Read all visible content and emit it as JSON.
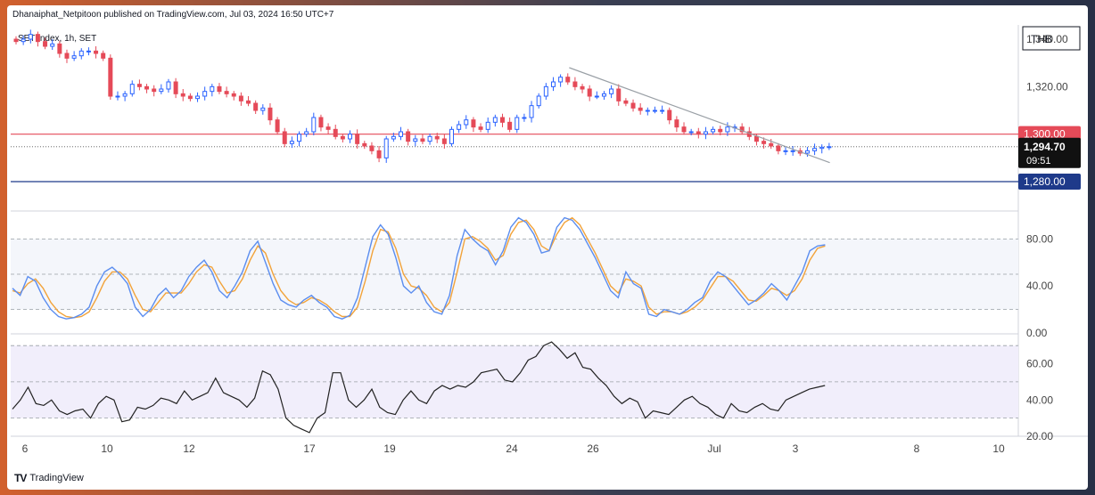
{
  "header": {
    "published": "Dhanaiphat_Netpitoon published on TradingView.com, Jul 03, 2024 16:50 UTC+7",
    "symbol": "SET Index, 1h, SET"
  },
  "footer": {
    "brand": "TradingView"
  },
  "colors": {
    "up": "#2962ff",
    "down": "#e54a58",
    "stoch_k": "#5b8def",
    "stoch_d": "#f2a33a",
    "rsi": "#222222",
    "resistance": "#e54a58",
    "support": "#1e3a8a"
  },
  "chart_data": [
    {
      "type": "candlestick",
      "currency": "THB",
      "price_scale_labels": [
        "1,340.00",
        "1,320.00"
      ],
      "ylim": [
        1268,
        1346
      ],
      "yticks": [
        1340,
        1320
      ],
      "x_tick_labels": [
        "6",
        "10",
        "12",
        "17",
        "19",
        "24",
        "26",
        "Jul",
        "3",
        "8",
        "10"
      ],
      "horizontal_levels": [
        {
          "value": 1300,
          "label": "1,300.00",
          "color": "#e54a58"
        },
        {
          "value": 1280,
          "label": "1,280.00",
          "color": "#1e3a8a"
        }
      ],
      "last_price": {
        "value": 1294.7,
        "label": "1,294.70",
        "countdown": "09:51"
      },
      "trendline": {
        "start": {
          "bar": 115,
          "price": 1328
        },
        "end": {
          "bar": 169,
          "price": 1288
        }
      },
      "bar_count": 170,
      "closes": [
        1339,
        1340,
        1342,
        1339,
        1337,
        1338,
        1334,
        1332,
        1333,
        1335,
        1335,
        1334,
        1332,
        1316,
        1316,
        1317,
        1321,
        1320,
        1319,
        1318,
        1319,
        1322,
        1317,
        1316,
        1315,
        1316,
        1318,
        1320,
        1318,
        1317,
        1316,
        1314,
        1313,
        1310,
        1311,
        1306,
        1301,
        1296,
        1297,
        1300,
        1301,
        1307,
        1303,
        1302,
        1299,
        1298,
        1300,
        1296,
        1295,
        1293,
        1290,
        1298,
        1299,
        1301,
        1297,
        1298,
        1297,
        1299,
        1298,
        1296,
        1302,
        1304,
        1306,
        1303,
        1302,
        1305,
        1307,
        1305,
        1302,
        1307,
        1307,
        1312,
        1316,
        1320,
        1322,
        1324,
        1322,
        1320,
        1319,
        1316,
        1316,
        1317,
        1319,
        1314,
        1313,
        1311,
        1310,
        1310,
        1310,
        1310,
        1306,
        1303,
        1301,
        1301,
        1300,
        1301,
        1302,
        1301,
        1303,
        1303,
        1301,
        1299,
        1297,
        1296,
        1295,
        1293,
        1293,
        1293,
        1292,
        1293,
        1294,
        1294.5,
        1294.7
      ],
      "stochastic": {
        "ylim": [
          0,
          100
        ],
        "yticks": [
          80,
          40,
          0
        ],
        "tick_labels": [
          "80.00",
          "40.00",
          "0.00"
        ],
        "bands": [
          80,
          20
        ],
        "mid": 50,
        "k": [
          38,
          32,
          48,
          44,
          30,
          20,
          14,
          12,
          13,
          16,
          22,
          40,
          52,
          56,
          50,
          42,
          22,
          14,
          20,
          32,
          38,
          30,
          36,
          48,
          56,
          62,
          52,
          36,
          30,
          40,
          52,
          70,
          78,
          60,
          42,
          28,
          24,
          22,
          28,
          32,
          26,
          22,
          14,
          12,
          15,
          30,
          56,
          82,
          92,
          84,
          64,
          40,
          34,
          40,
          26,
          18,
          16,
          32,
          66,
          88,
          80,
          74,
          70,
          58,
          70,
          90,
          98,
          94,
          84,
          68,
          70,
          90,
          98,
          96,
          88,
          76,
          64,
          50,
          36,
          30,
          52,
          42,
          38,
          16,
          14,
          20,
          18,
          16,
          20,
          26,
          30,
          44,
          52,
          48,
          40,
          32,
          24,
          28,
          34,
          42,
          36,
          28,
          40,
          52,
          70,
          74,
          75
        ],
        "d": [
          36,
          34,
          42,
          46,
          38,
          26,
          18,
          14,
          13,
          14,
          18,
          30,
          44,
          52,
          52,
          46,
          32,
          20,
          18,
          26,
          34,
          34,
          34,
          42,
          52,
          58,
          56,
          44,
          34,
          36,
          46,
          62,
          74,
          68,
          50,
          36,
          28,
          24,
          26,
          30,
          28,
          24,
          18,
          14,
          14,
          22,
          44,
          70,
          88,
          86,
          72,
          50,
          40,
          38,
          32,
          22,
          18,
          26,
          52,
          80,
          82,
          78,
          72,
          62,
          66,
          84,
          94,
          96,
          88,
          74,
          70,
          84,
          94,
          98,
          92,
          80,
          68,
          54,
          40,
          34,
          46,
          44,
          40,
          22,
          16,
          18,
          18,
          16,
          18,
          22,
          28,
          38,
          48,
          48,
          44,
          36,
          28,
          27,
          32,
          38,
          36,
          32,
          36,
          46,
          62,
          72,
          74
        ]
      },
      "rsi": {
        "ylim": [
          20,
          75
        ],
        "yticks": [
          60,
          40,
          20
        ],
        "tick_labels": [
          "60.00",
          "40.00",
          "20.00"
        ],
        "bands": [
          70,
          30
        ],
        "mid": 50,
        "values": [
          35,
          40,
          47,
          38,
          37,
          40,
          34,
          32,
          34,
          35,
          30,
          38,
          42,
          40,
          28,
          29,
          36,
          35,
          37,
          41,
          40,
          38,
          45,
          40,
          42,
          44,
          52,
          44,
          42,
          40,
          36,
          41,
          56,
          54,
          46,
          30,
          26,
          24,
          22,
          30,
          33,
          55,
          55,
          40,
          36,
          40,
          46,
          36,
          33,
          32,
          40,
          45,
          40,
          38,
          45,
          48,
          46,
          48,
          47,
          50,
          55,
          56,
          57,
          51,
          50,
          55,
          62,
          64,
          70,
          72,
          68,
          63,
          66,
          58,
          57,
          52,
          48,
          42,
          38,
          41,
          39,
          30,
          34,
          33,
          32,
          36,
          40,
          42,
          38,
          36,
          32,
          30,
          38,
          34,
          33,
          36,
          38,
          35,
          34,
          40,
          42,
          44,
          46,
          47,
          48
        ]
      }
    }
  ]
}
